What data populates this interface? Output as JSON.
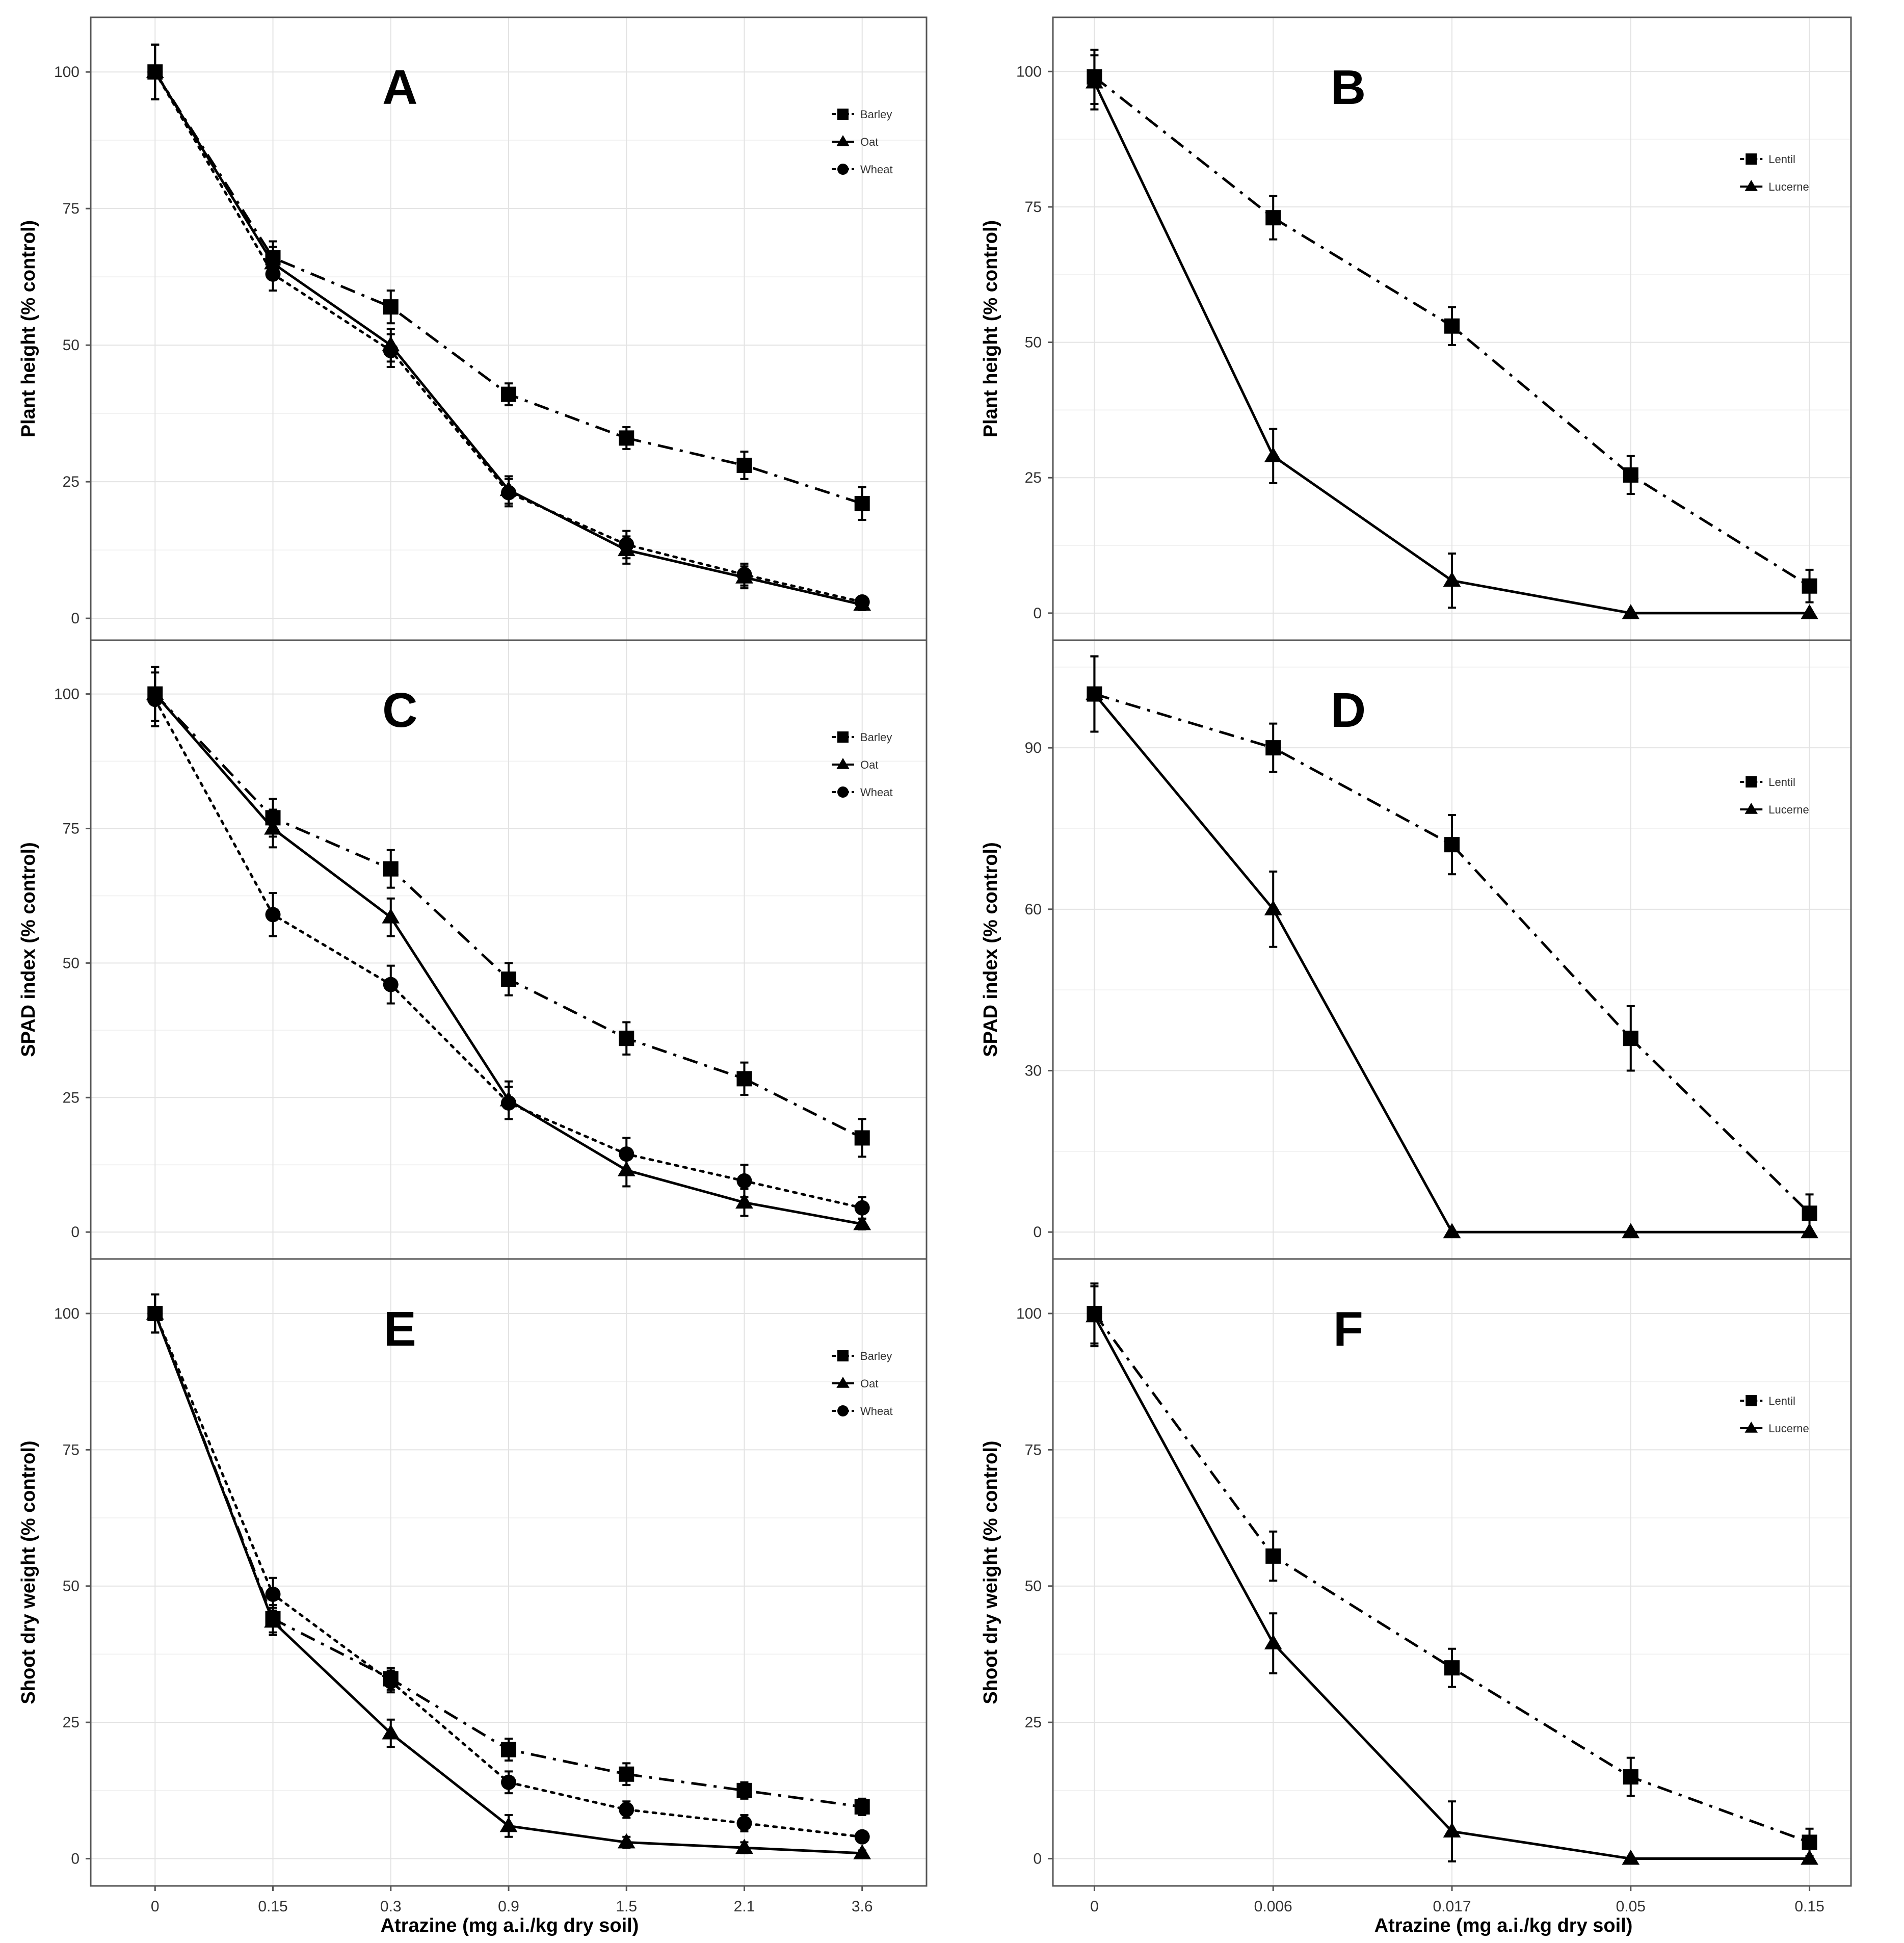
{
  "x_axis_title": "Atrazine (mg a.i./kg dry soil)",
  "chart_data": [
    {
      "panel": "A",
      "type": "line",
      "ylabel": "Plant height (% control)",
      "categories": [
        "0",
        "0.15",
        "0.3",
        "0.9",
        "1.5",
        "2.1",
        "3.6"
      ],
      "ylim": [
        -4,
        110
      ],
      "yticks": [
        0,
        25,
        50,
        75,
        100
      ],
      "grid": true,
      "legend_position": "top-right",
      "series": [
        {
          "name": "Barley",
          "marker": "square",
          "line": "dashdot",
          "values": [
            100,
            66,
            57,
            41,
            33,
            28,
            21
          ],
          "errors": [
            5,
            3,
            3,
            2,
            2,
            2.5,
            3
          ]
        },
        {
          "name": "Oat",
          "marker": "triangle",
          "line": "solid",
          "values": [
            100,
            65,
            50,
            23.5,
            12.5,
            7.5,
            2.5
          ],
          "errors": [
            5,
            3,
            3,
            2.5,
            2.5,
            2,
            1
          ]
        },
        {
          "name": "Wheat",
          "marker": "circle",
          "line": "dotted",
          "values": [
            100,
            63,
            49,
            23,
            13.5,
            8,
            3
          ],
          "errors": [
            5,
            3,
            3,
            2.5,
            2.5,
            2,
            1
          ]
        }
      ]
    },
    {
      "panel": "B",
      "type": "line",
      "ylabel": "Plant height (% control)",
      "categories": [
        "0",
        "0.006",
        "0.017",
        "0.05",
        "0.15"
      ],
      "ylim": [
        -5,
        110
      ],
      "yticks": [
        0,
        25,
        50,
        75,
        100
      ],
      "grid": true,
      "legend_position": "top-right",
      "series": [
        {
          "name": "Lentil",
          "marker": "square",
          "line": "dashdot",
          "values": [
            99,
            73,
            53,
            25.5,
            5
          ],
          "errors": [
            5,
            4,
            3.5,
            3.5,
            3
          ]
        },
        {
          "name": "Lucerne",
          "marker": "triangle",
          "line": "solid",
          "values": [
            98,
            29,
            6,
            0,
            0
          ],
          "errors": [
            5,
            5,
            5,
            0,
            0
          ]
        }
      ]
    },
    {
      "panel": "C",
      "type": "line",
      "ylabel": "SPAD index (% control)",
      "categories": [
        "0",
        "0.15",
        "0.3",
        "0.9",
        "1.5",
        "2.1",
        "3.6"
      ],
      "ylim": [
        -5,
        110
      ],
      "yticks": [
        0,
        25,
        50,
        75,
        100
      ],
      "grid": true,
      "legend_position": "top-right",
      "series": [
        {
          "name": "Barley",
          "marker": "square",
          "line": "dashdot",
          "values": [
            100,
            77,
            67.5,
            47,
            36,
            28.5,
            17.5
          ],
          "errors": [
            5,
            3.5,
            3.5,
            3,
            3,
            3,
            3.5
          ]
        },
        {
          "name": "Oat",
          "marker": "triangle",
          "line": "solid",
          "values": [
            100,
            75,
            58.5,
            24.5,
            11.5,
            5.5,
            1.5
          ],
          "errors": [
            5,
            3.5,
            3.5,
            3.5,
            3,
            2.5,
            1
          ]
        },
        {
          "name": "Wheat",
          "marker": "circle",
          "line": "dotted",
          "values": [
            99,
            59,
            46,
            24,
            14.5,
            9.5,
            4.5
          ],
          "errors": [
            5,
            4,
            3.5,
            3,
            3,
            3,
            2
          ]
        }
      ]
    },
    {
      "panel": "D",
      "type": "line",
      "ylabel": "SPAD index (% control)",
      "categories": [
        "0",
        "0.006",
        "0.017",
        "0.05",
        "0.15"
      ],
      "ylim": [
        -5,
        110
      ],
      "yticks": [
        0,
        30,
        60,
        90
      ],
      "grid": true,
      "legend_position": "top-right",
      "series": [
        {
          "name": "Lentil",
          "marker": "square",
          "line": "dashdot",
          "values": [
            100,
            90,
            72,
            36,
            3.5
          ],
          "errors": [
            7,
            4.5,
            5.5,
            6,
            3.5
          ]
        },
        {
          "name": "Lucerne",
          "marker": "triangle",
          "line": "solid",
          "values": [
            100,
            60,
            0,
            0,
            0
          ],
          "errors": [
            7,
            7,
            0,
            0,
            0
          ]
        }
      ]
    },
    {
      "panel": "E",
      "type": "line",
      "ylabel": "Shoot dry weight (% control)",
      "categories": [
        "0",
        "0.15",
        "0.3",
        "0.9",
        "1.5",
        "2.1",
        "3.6"
      ],
      "ylim": [
        -5,
        110
      ],
      "yticks": [
        0,
        25,
        50,
        75,
        100
      ],
      "grid": true,
      "legend_position": "top-right",
      "series": [
        {
          "name": "Barley",
          "marker": "square",
          "line": "dashdot",
          "values": [
            100,
            44,
            33,
            20,
            15.5,
            12.5,
            9.5
          ],
          "errors": [
            3.5,
            2.5,
            2,
            2,
            2,
            1.5,
            1.5
          ]
        },
        {
          "name": "Oat",
          "marker": "triangle",
          "line": "solid",
          "values": [
            100,
            43.5,
            23,
            6,
            3,
            2,
            1
          ],
          "errors": [
            3.5,
            2.5,
            2.5,
            2,
            1,
            1,
            0.5
          ]
        },
        {
          "name": "Wheat",
          "marker": "circle",
          "line": "dotted",
          "values": [
            100,
            48.5,
            32.5,
            14,
            9,
            6.5,
            4
          ],
          "errors": [
            3.5,
            3,
            2,
            2,
            1.5,
            1.5,
            1
          ]
        }
      ]
    },
    {
      "panel": "F",
      "type": "line",
      "ylabel": "Shoot dry weight (% control)",
      "categories": [
        "0",
        "0.006",
        "0.017",
        "0.05",
        "0.15"
      ],
      "ylim": [
        -5,
        110
      ],
      "yticks": [
        0,
        25,
        50,
        75,
        100
      ],
      "grid": true,
      "legend_position": "top-right",
      "series": [
        {
          "name": "Lentil",
          "marker": "square",
          "line": "dashdot",
          "values": [
            100,
            55.5,
            35,
            15,
            3
          ],
          "errors": [
            5.5,
            4.5,
            3.5,
            3.5,
            2.5
          ]
        },
        {
          "name": "Lucerne",
          "marker": "triangle",
          "line": "solid",
          "values": [
            99.5,
            39.5,
            5,
            0,
            0
          ],
          "errors": [
            5.5,
            5.5,
            5.5,
            0,
            0
          ]
        }
      ]
    }
  ]
}
